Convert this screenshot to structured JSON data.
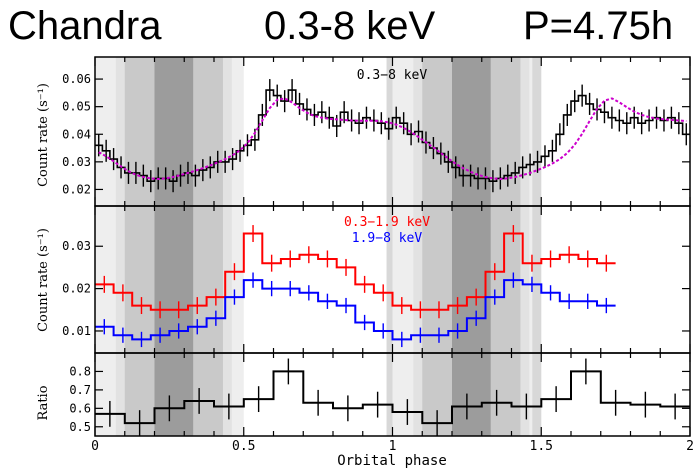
{
  "banner": {
    "telescope": "Chandra",
    "band": "0.3-8 keV",
    "period": "P=4.75h"
  },
  "chart_data": [
    {
      "type": "line",
      "panel": "top",
      "annotation": "0.3−8 keV",
      "ylabel": "Count rate (s⁻¹)",
      "xlim": [
        0,
        2
      ],
      "ylim": [
        0.014,
        0.068
      ],
      "yticks": [
        "0.02",
        "0.03",
        "0.04",
        "0.05",
        "0.06"
      ],
      "series": [
        {
          "style": "histogram",
          "color": "#000000",
          "step": 0.025,
          "values": [
            0.036,
            0.034,
            0.031,
            0.028,
            0.026,
            0.026,
            0.025,
            0.023,
            0.024,
            0.024,
            0.023,
            0.025,
            0.026,
            0.025,
            0.027,
            0.028,
            0.03,
            0.03,
            0.031,
            0.034,
            0.036,
            0.038,
            0.047,
            0.056,
            0.054,
            0.052,
            0.056,
            0.051,
            0.049,
            0.047,
            0.048,
            0.046,
            0.043,
            0.048,
            0.045,
            0.044,
            0.046,
            0.045,
            0.044,
            0.042,
            0.046,
            0.044,
            0.04,
            0.041,
            0.037,
            0.035,
            0.033,
            0.03,
            0.028,
            0.025,
            0.025,
            0.024,
            0.024,
            0.023,
            0.024,
            0.025,
            0.026,
            0.028,
            0.029,
            0.03,
            0.032,
            0.034,
            0.04,
            0.047,
            0.052,
            0.054,
            0.051,
            0.049,
            0.048,
            0.046,
            0.045,
            0.044,
            0.046,
            0.044,
            0.045,
            0.046,
            0.045,
            0.046,
            0.044,
            0.04
          ],
          "error": 0.004
        },
        {
          "style": "model",
          "color": "#cc00cc",
          "values": [
            0.0335,
            0.032,
            0.0302,
            0.0283,
            0.0266,
            0.0253,
            0.0245,
            0.024,
            0.0238,
            0.024,
            0.0245,
            0.0252,
            0.026,
            0.0268,
            0.0277,
            0.0287,
            0.0298,
            0.031,
            0.0324,
            0.0342,
            0.0368,
            0.0405,
            0.045,
            0.0495,
            0.0525,
            0.053,
            0.0515,
            0.0495,
            0.0478,
            0.0466,
            0.046,
            0.0456,
            0.0454,
            0.0452,
            0.045,
            0.0449,
            0.0449,
            0.0449,
            0.0447,
            0.0443,
            0.0435,
            0.0423,
            0.0408,
            0.039,
            0.0371,
            0.0352,
            0.0332,
            0.0312,
            0.0293,
            0.0277,
            0.0264,
            0.0253,
            0.0245,
            0.024,
            0.0238,
            0.024,
            0.0245,
            0.0252,
            0.026,
            0.027,
            0.0281,
            0.0294,
            0.031,
            0.0332,
            0.0362,
            0.0402,
            0.0448,
            0.0492,
            0.0522,
            0.053,
            0.0516,
            0.0498,
            0.0482,
            0.047,
            0.0462,
            0.0457,
            0.0454,
            0.0452,
            0.045,
            0.0448
          ]
        }
      ]
    },
    {
      "type": "line",
      "panel": "middle",
      "ylabel": "Count rate (s⁻¹)",
      "xlim": [
        0,
        2
      ],
      "ylim": [
        0.0048,
        0.0395
      ],
      "yticks": [
        "0.01",
        "0.02",
        "0.03"
      ],
      "series": [
        {
          "name": "0.3−1.9 keV",
          "color": "#ff0000",
          "style": "histogram",
          "step": 0.0625,
          "values": [
            0.021,
            0.019,
            0.016,
            0.015,
            0.015,
            0.016,
            0.018,
            0.024,
            0.033,
            0.026,
            0.027,
            0.028,
            0.027,
            0.025,
            0.021,
            0.019,
            0.016,
            0.015,
            0.015,
            0.016,
            0.018,
            0.024,
            0.033,
            0.026,
            0.027,
            0.028,
            0.027,
            0.026
          ],
          "error": 0.002
        },
        {
          "name": "1.9−8 keV",
          "color": "#0000ff",
          "style": "histogram",
          "step": 0.0625,
          "values": [
            0.011,
            0.009,
            0.008,
            0.009,
            0.01,
            0.011,
            0.013,
            0.018,
            0.022,
            0.02,
            0.02,
            0.019,
            0.017,
            0.016,
            0.012,
            0.01,
            0.008,
            0.009,
            0.009,
            0.01,
            0.013,
            0.018,
            0.022,
            0.021,
            0.019,
            0.017,
            0.017,
            0.016
          ],
          "error": 0.0018
        }
      ]
    },
    {
      "type": "line",
      "panel": "bottom",
      "ylabel": "Ratio",
      "xlabel": "Orbital phase",
      "xlim": [
        0,
        2
      ],
      "ylim": [
        0.45,
        0.9
      ],
      "yticks": [
        "0.5",
        "0.6",
        "0.7",
        "0.8"
      ],
      "xticks": [
        "0",
        "0.5",
        "1",
        "1.5",
        "2"
      ],
      "series": [
        {
          "color": "#000000",
          "style": "histogram",
          "step": 0.1,
          "values": [
            0.57,
            0.52,
            0.6,
            0.64,
            0.61,
            0.65,
            0.8,
            0.63,
            0.6,
            0.62,
            0.58,
            0.52,
            0.61,
            0.63,
            0.61,
            0.65,
            0.8,
            0.63,
            0.62,
            0.61
          ],
          "error": 0.07
        }
      ]
    }
  ]
}
